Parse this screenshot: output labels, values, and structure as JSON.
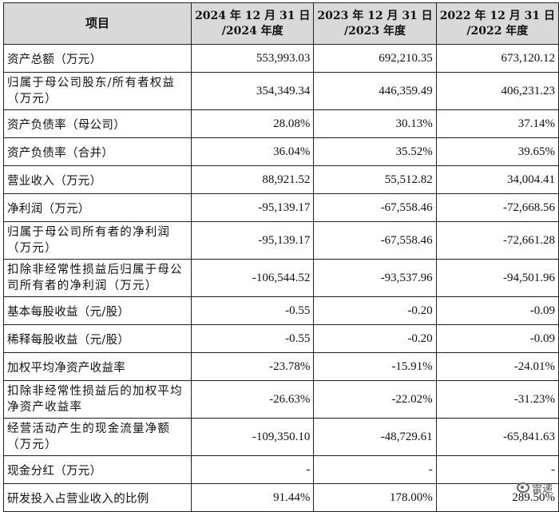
{
  "table": {
    "headers": {
      "item": "项目",
      "col_2024_line1": "2024 年 12 月 31 日",
      "col_2024_line2": "/2024 年度",
      "col_2023_line1": "2023 年 12 月 31 日",
      "col_2023_line2": "/2023 年度",
      "col_2022_line1": "2022 年 12 月 31 日",
      "col_2022_line2": "/2022 年度"
    },
    "rows": [
      {
        "label": "资产总额（万元）",
        "v2024": "553,993.03",
        "v2023": "692,210.35",
        "v2022": "673,120.12"
      },
      {
        "label": "归属于母公司股东/所有者权益（万元）",
        "v2024": "354,349.34",
        "v2023": "446,359.49",
        "v2022": "406,231.23"
      },
      {
        "label": "资产负债率（母公司）",
        "v2024": "28.08%",
        "v2023": "30.13%",
        "v2022": "37.14%"
      },
      {
        "label": "资产负债率（合并）",
        "v2024": "36.04%",
        "v2023": "35.52%",
        "v2022": "39.65%"
      },
      {
        "label": "营业收入（万元）",
        "v2024": "88,921.52",
        "v2023": "55,512.82",
        "v2022": "34,004.41"
      },
      {
        "label": "净利润（万元）",
        "v2024": "-95,139.17",
        "v2023": "-67,558.46",
        "v2022": "-72,668.56"
      },
      {
        "label": "归属于母公司所有者的净利润（万元）",
        "v2024": "-95,139.17",
        "v2023": "-67,558.46",
        "v2022": "-72,661.28"
      },
      {
        "label": "扣除非经常性损益后归属于母公司所有者的净利润（万元）",
        "v2024": "-106,544.52",
        "v2023": "-93,537.96",
        "v2022": "-94,501.96"
      },
      {
        "label": "基本每股收益（元/股）",
        "v2024": "-0.55",
        "v2023": "-0.20",
        "v2022": "-0.09"
      },
      {
        "label": "稀释每股收益（元/股）",
        "v2024": "-0.55",
        "v2023": "-0.20",
        "v2022": "-0.09"
      },
      {
        "label": "加权平均净资产收益率",
        "v2024": "-23.78%",
        "v2023": "-15.91%",
        "v2022": "-24.01%"
      },
      {
        "label": "扣除非经常性损益后的加权平均净资产收益率",
        "v2024": "-26.63%",
        "v2023": "-22.02%",
        "v2022": "-31.23%"
      },
      {
        "label": "经营活动产生的现金流量净额（万元）",
        "v2024": "-109,350.10",
        "v2023": "-48,729.61",
        "v2022": "-65,841.63"
      },
      {
        "label": "现金分红（万元）",
        "v2024": "-",
        "v2023": "-",
        "v2022": "-"
      },
      {
        "label": "研发投入占营业收入的比例",
        "v2024": "91.44%",
        "v2023": "178.00%",
        "v2022": "289.50%"
      }
    ]
  },
  "watermark": {
    "icon": "weibo-logo-icon",
    "text": "雷递"
  }
}
